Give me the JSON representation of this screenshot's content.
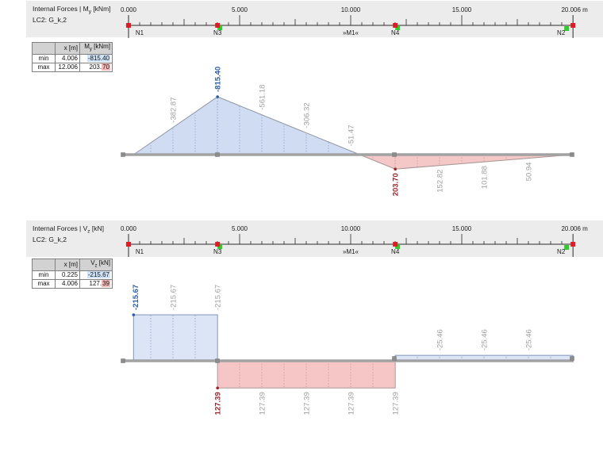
{
  "colors": {
    "header_strip": "#ececec",
    "beam": "#a2a2a2",
    "junction_square": "#8c8c8c",
    "ruler_line": "#2b2b2b",
    "node_red": "#e01b24",
    "node_green": "#2ecc2e",
    "label_gray": "#9e9e9e",
    "min_text": "#2b5ca8",
    "max_text": "#9c2428",
    "min_highlight": "#cfe3f8",
    "max_highlight": "#f5b9b9"
  },
  "ruler": {
    "unit_labels": [
      {
        "m": 0,
        "text": "0.000"
      },
      {
        "m": 5,
        "text": "5.000"
      },
      {
        "m": 10,
        "text": "10.000"
      },
      {
        "m": 15,
        "text": "15.000"
      },
      {
        "m": 20.006,
        "text": "20.006 m"
      }
    ],
    "nodes": [
      {
        "name": "N1",
        "m": 0,
        "green": false,
        "label_dx": 14
      },
      {
        "name": "N3",
        "m": 4.006,
        "green": true,
        "green_dx": 3,
        "green_dy": 3,
        "label_dx": 0
      },
      {
        "name": "N4",
        "m": 12.006,
        "green": true,
        "green_dx": 3,
        "green_dy": 3,
        "label_dx": 0
      },
      {
        "name": "N2",
        "m": 20.006,
        "green": true,
        "green_dx": -8,
        "green_dy": 4,
        "label_dx": -15
      }
    ],
    "member_labels": [
      {
        "text": "»M1«",
        "m": 10
      }
    ]
  },
  "panels": [
    {
      "title_pre": "Internal Forces | M",
      "title_sub": "y",
      "title_post": " [kNm]",
      "subtitle": "LC2: G_k,2",
      "table": {
        "h_x": "x [m]",
        "vh_pre": "M",
        "vh_sub": "y",
        "vh_post": " [kNm]",
        "rows": [
          {
            "label": "min",
            "x": "4.006",
            "value_pre": "",
            "value_hl": "-815.40"
          },
          {
            "label": "max",
            "x": "12.006",
            "value_pre": "203.",
            "value_hl": "70"
          }
        ]
      }
    },
    {
      "title_pre": "Internal Forces | V",
      "title_sub": "z",
      "title_post": " [kN]",
      "subtitle": "LC2: G_k,2",
      "table": {
        "h_x": "x [m]",
        "vh_pre": "V",
        "vh_sub": "z",
        "vh_post": " [kN]",
        "rows": [
          {
            "label": "min",
            "x": "0.225",
            "value_pre": "",
            "value_hl": "-215.67"
          },
          {
            "label": "max",
            "x": "4.006",
            "value_pre": "127.",
            "value_hl": "39"
          }
        ]
      }
    }
  ],
  "chart_data": [
    {
      "type": "area",
      "title": "Internal Forces | My [kNm]",
      "load_case": "LC2: G_k,2",
      "quantity": "My",
      "unit": "kNm",
      "x_unit": "m",
      "x_range": [
        0,
        20.006
      ],
      "polyline": [
        [
          0.225,
          0
        ],
        [
          4.006,
          -815.4
        ],
        [
          12.006,
          203.7
        ],
        [
          20.006,
          0
        ]
      ],
      "value_labels": [
        {
          "x": 2,
          "v": -382.87,
          "text": "-382.87"
        },
        {
          "x": 4.006,
          "v": -815.4,
          "text": "-815.40",
          "extreme": "min"
        },
        {
          "x": 6,
          "v": -561.18,
          "text": "-561.18"
        },
        {
          "x": 8,
          "v": -306.32,
          "text": "-306.32"
        },
        {
          "x": 10,
          "v": -51.47,
          "text": "-51.47"
        },
        {
          "x": 12.006,
          "v": 203.7,
          "text": "203.70",
          "extreme": "max"
        },
        {
          "x": 14,
          "v": 152.82,
          "text": "152.82"
        },
        {
          "x": 16,
          "v": 101.88,
          "text": "101.88"
        },
        {
          "x": 18,
          "v": 50.94,
          "text": "50.94"
        }
      ],
      "min": {
        "x": 4.006,
        "v": -815.4
      },
      "max": {
        "x": 12.006,
        "v": 203.7
      },
      "fill_neg": "#cfdcf2",
      "fill_pos": "#f5c8c8",
      "stroke_neg": "#8f96a3",
      "stroke_pos": "#a89595",
      "grid_neg": "#92a5c8",
      "grid_pos": "#c49a9a"
    },
    {
      "type": "step",
      "title": "Internal Forces | Vz [kN]",
      "load_case": "LC2: G_k,2",
      "quantity": "Vz",
      "unit": "kN",
      "x_unit": "m",
      "x_range": [
        0,
        20.006
      ],
      "segments": [
        {
          "from": 0.225,
          "to": 4.006,
          "v": -215.67
        },
        {
          "from": 4.006,
          "to": 12.006,
          "v": 127.39
        },
        {
          "from": 12.006,
          "to": 20.006,
          "v": -25.46
        }
      ],
      "value_labels": [
        {
          "x": 0.3,
          "v": -215.67,
          "text": "-215.67",
          "extreme": "min"
        },
        {
          "x": 2,
          "v": -215.67,
          "text": "-215.67"
        },
        {
          "x": 4.006,
          "v": -215.67,
          "text": "-215.67"
        },
        {
          "x": 4.006,
          "v": 127.39,
          "text": "127.39",
          "extreme": "max"
        },
        {
          "x": 6,
          "v": 127.39,
          "text": "127.39"
        },
        {
          "x": 8,
          "v": 127.39,
          "text": "127.39"
        },
        {
          "x": 10,
          "v": 127.39,
          "text": "127.39"
        },
        {
          "x": 12.006,
          "v": 127.39,
          "text": "127.39"
        },
        {
          "x": 14,
          "v": -25.46,
          "text": "-25.46"
        },
        {
          "x": 16,
          "v": -25.46,
          "text": "-25.46"
        },
        {
          "x": 18,
          "v": -25.46,
          "text": "-25.46"
        }
      ],
      "min": {
        "x": 0.225,
        "v": -215.67
      },
      "max": {
        "x": 4.006,
        "v": 127.39
      },
      "fill_neg": "#dbe5f6",
      "fill_pos": "#f6c6c6",
      "stroke_neg": "#8094bc",
      "stroke_pos": "#ab9898",
      "grid_neg": "#8aa0c8",
      "grid_pos": "#c49a9a"
    }
  ]
}
